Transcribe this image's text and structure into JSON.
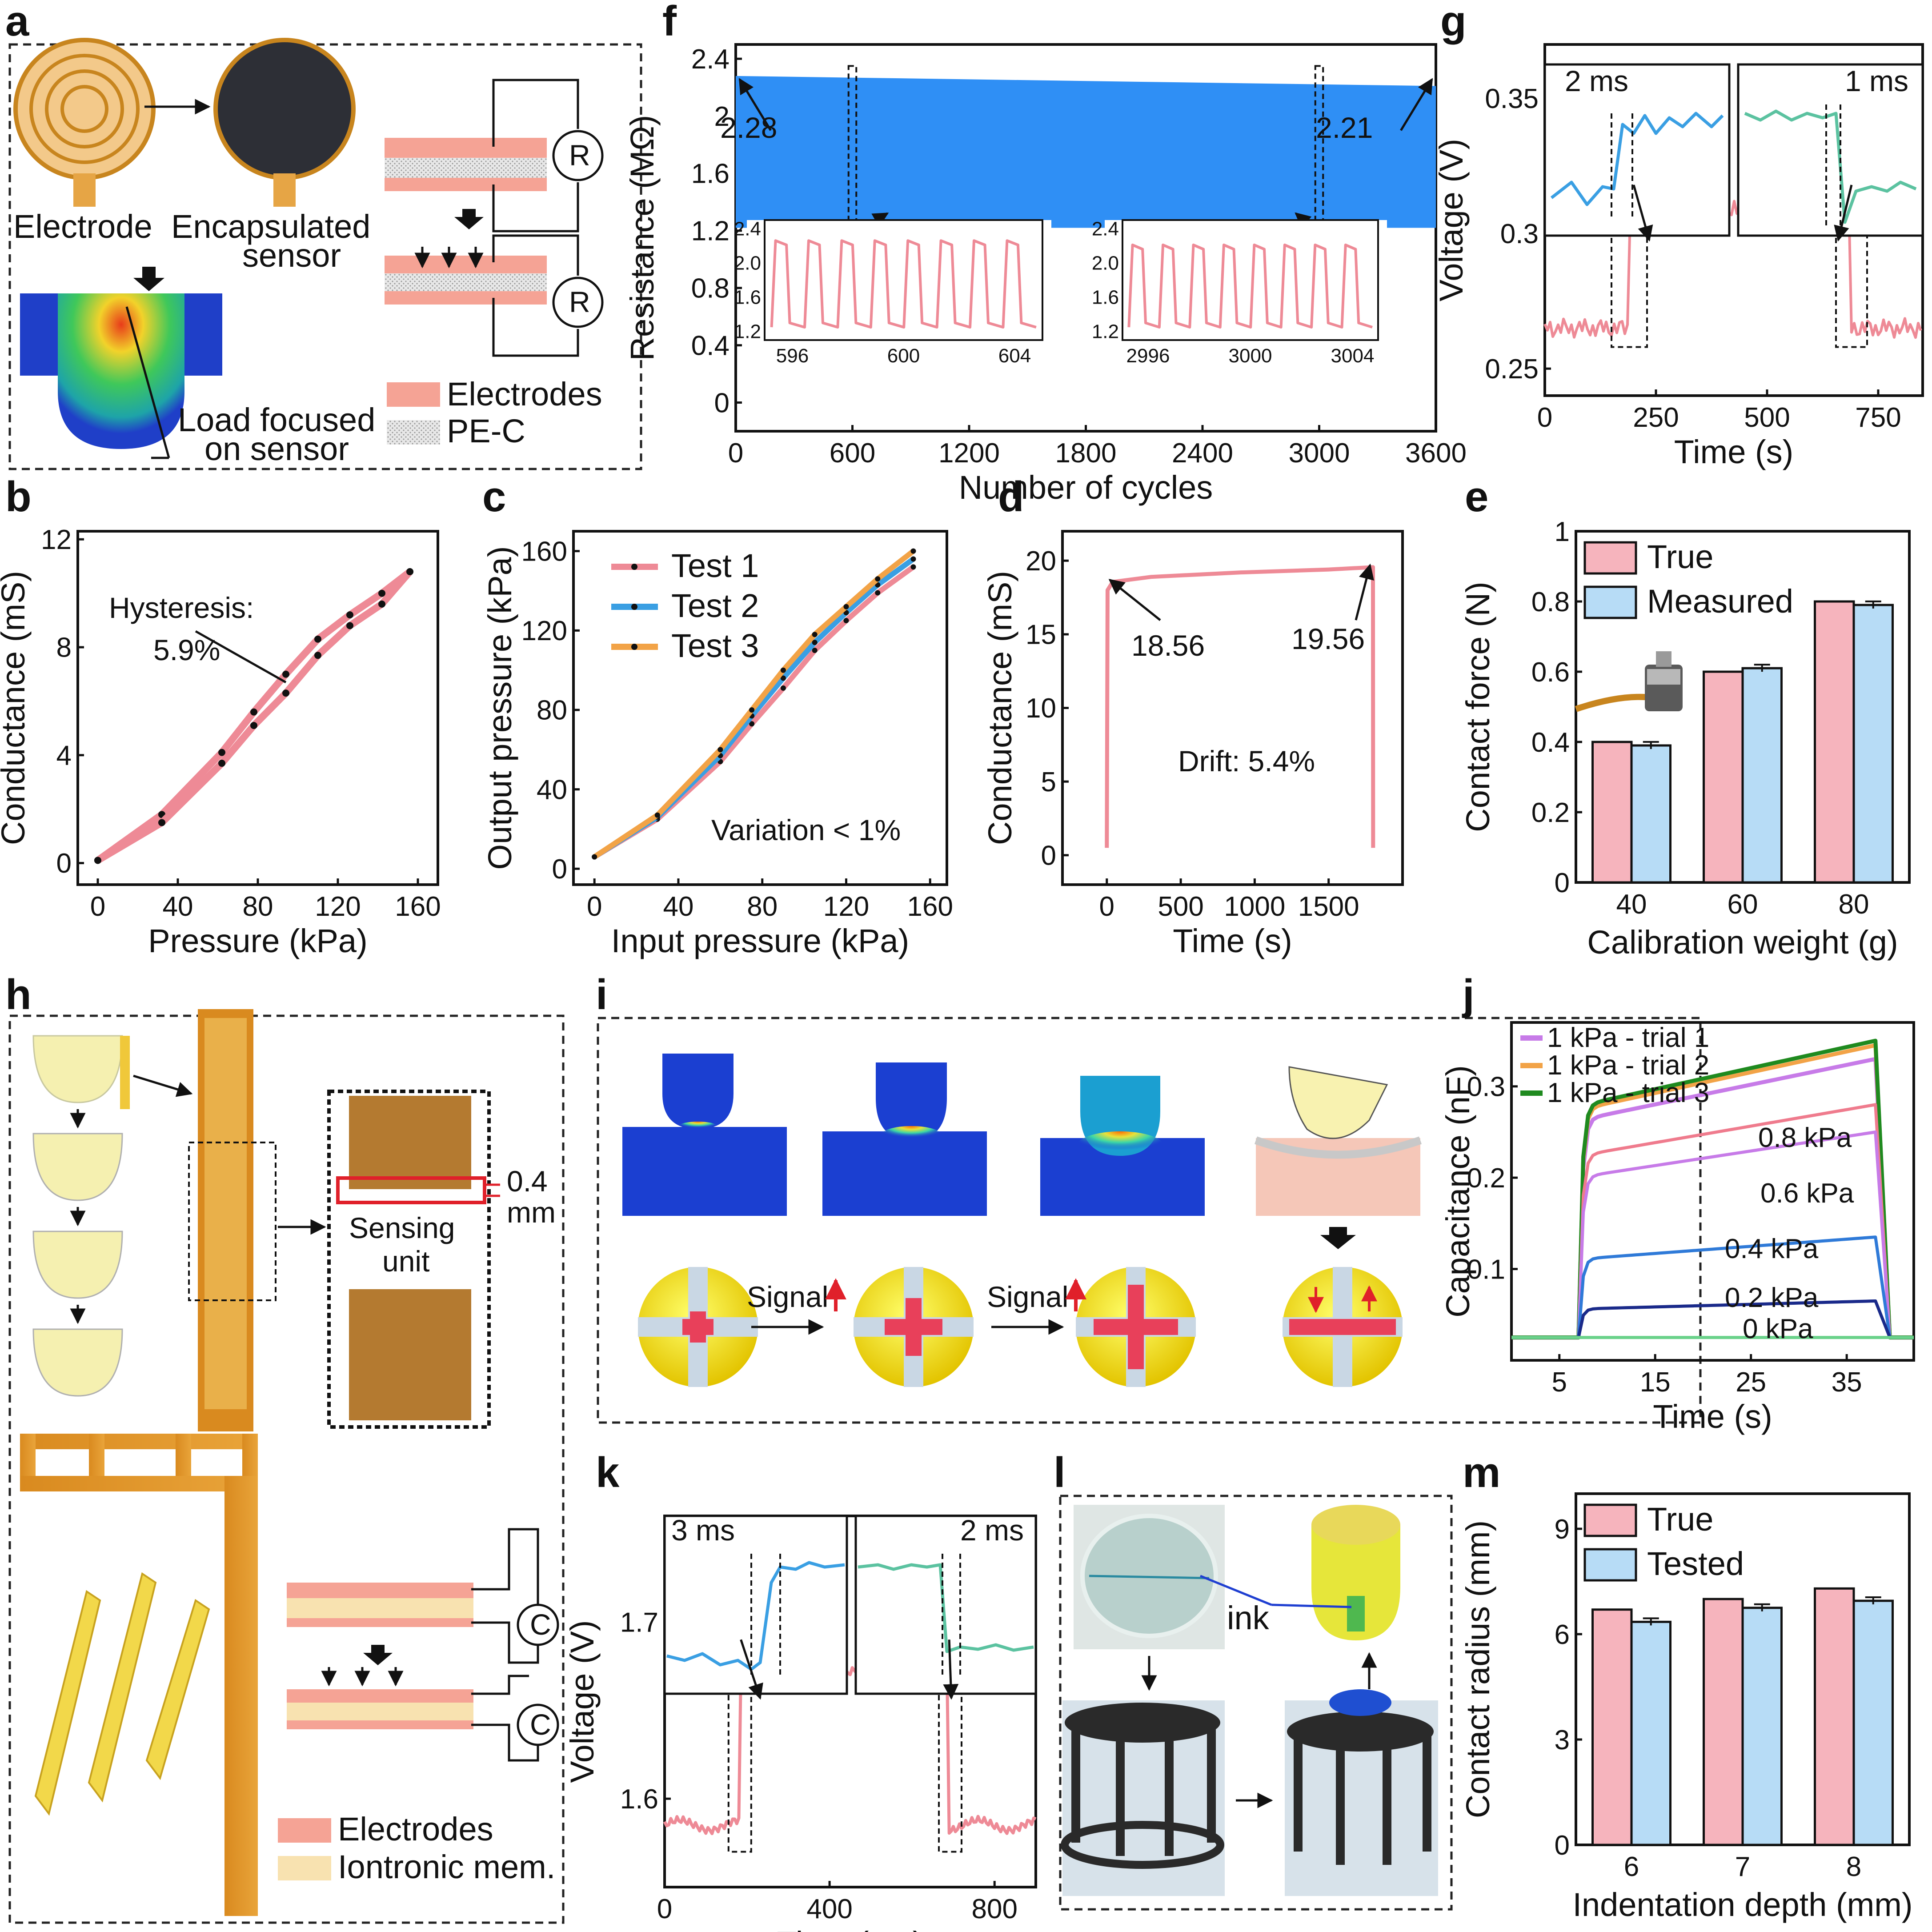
{
  "panels": {
    "a": {
      "letter": "a",
      "electrode": "Electrode",
      "encapsulated": [
        "Encapsulated",
        "sensor"
      ],
      "load": [
        "Load focused",
        "on sensor"
      ],
      "legend": [
        "Electrodes",
        "PE-C"
      ],
      "r_symbol": "R"
    },
    "f": {
      "letter": "f",
      "annot_left": "2.28",
      "annot_right": "2.21"
    },
    "g": {
      "letter": "g",
      "inset_left_label": "2 ms",
      "inset_right_label": "1 ms"
    },
    "b": {
      "letter": "b",
      "annot": [
        "Hysteresis:",
        "5.9%"
      ]
    },
    "c": {
      "letter": "c",
      "annot": "Variation < 1%"
    },
    "d": {
      "letter": "d",
      "annot_left": "18.56",
      "annot_right": "19.56",
      "drift": "Drift: 5.4%"
    },
    "e": {
      "letter": "e"
    },
    "h": {
      "letter": "h",
      "dim": [
        "0.4",
        "mm"
      ],
      "sensing": [
        "Sensing",
        "unit"
      ],
      "legend": [
        "Electrodes",
        "Iontronic mem."
      ],
      "c_symbol": "C"
    },
    "i": {
      "letter": "i",
      "signal": "Signal"
    },
    "j": {
      "letter": "j",
      "levels": [
        "0.8 kPa",
        "0.6 kPa",
        "0.4 kPa",
        "0.2 kPa",
        "0 kPa"
      ]
    },
    "k": {
      "letter": "k",
      "inset_left_label": "3 ms",
      "inset_right_label": "2 ms"
    },
    "l": {
      "letter": "l",
      "ink": "ink"
    },
    "m": {
      "letter": "m"
    }
  },
  "colors": {
    "pink": "#ee8a96",
    "blue_band": "#2f8ff5",
    "bar_true": "#f6b4bd",
    "bar_meas": "#b7dcf6",
    "orange": "#f2a347",
    "cyan": "#3a9fe3",
    "teal": "#5bc2a0",
    "violet": "#c77be8",
    "green": "#1f8a1f",
    "navy": "#1a2a8a",
    "mid_blue": "#2f7ad8",
    "light_green": "#6ad28a"
  },
  "chart_data": [
    {
      "id": "f",
      "type": "line",
      "xlabel": "Number of cycles",
      "ylabel": "Resistance (MΩ)",
      "xlim": [
        0,
        3600
      ],
      "ylim": [
        -0.2,
        2.5
      ],
      "xticks": [
        0,
        600,
        1200,
        1800,
        2400,
        3000,
        3600
      ],
      "yticks": [
        0,
        0.4,
        0.8,
        1.2,
        1.6,
        2.0,
        2.4
      ],
      "band": {
        "x": [
          0,
          3600
        ],
        "upper": [
          2.28,
          2.21
        ],
        "lower": [
          1.22,
          1.22
        ]
      },
      "insets": [
        {
          "xlim": [
            595,
            605
          ],
          "ylim": [
            1.1,
            2.5
          ],
          "xticks": [
            596,
            600,
            604
          ],
          "yticks": [
            1.2,
            1.6,
            2.0,
            2.4
          ],
          "cycles": 8,
          "low": 1.25,
          "high": 2.26
        },
        {
          "xlim": [
            2995,
            3005
          ],
          "ylim": [
            1.1,
            2.5
          ],
          "xticks": [
            2996,
            3000,
            3004
          ],
          "yticks": [
            1.2,
            1.6,
            2.0,
            2.4
          ],
          "cycles": 8,
          "low": 1.25,
          "high": 2.21
        }
      ]
    },
    {
      "id": "g",
      "type": "line",
      "xlabel": "Time (s)",
      "ylabel": "Voltage (V)",
      "xlim": [
        0,
        850
      ],
      "ylim": [
        0.24,
        0.37
      ],
      "xticks": [
        0,
        250,
        500,
        750
      ],
      "yticks": [
        0.25,
        0.3,
        0.35
      ],
      "x": [
        0,
        100,
        180,
        200,
        400,
        600,
        680,
        700,
        850
      ],
      "y": [
        0.265,
        0.266,
        0.265,
        0.307,
        0.308,
        0.309,
        0.308,
        0.265,
        0.266
      ]
    },
    {
      "id": "b",
      "type": "line",
      "xlabel": "Pressure (kPa)",
      "ylabel": "Conductance (mS)",
      "xlim": [
        -10,
        170
      ],
      "ylim": [
        -0.8,
        12.3
      ],
      "xticks": [
        0,
        40,
        80,
        120,
        160
      ],
      "yticks": [
        0,
        4,
        8,
        12
      ],
      "series": [
        {
          "x": [
            0,
            32,
            62,
            78,
            94,
            110,
            126,
            142,
            156
          ],
          "y": [
            0.1,
            1.8,
            4.1,
            5.6,
            7.0,
            8.3,
            9.2,
            10.0,
            10.8
          ]
        },
        {
          "x": [
            0,
            32,
            62,
            78,
            94,
            110,
            126,
            142,
            156
          ],
          "y": [
            0.1,
            1.5,
            3.7,
            5.1,
            6.3,
            7.7,
            8.8,
            9.6,
            10.8
          ]
        }
      ]
    },
    {
      "id": "c",
      "type": "line",
      "xlabel": "Input pressure (kPa)",
      "ylabel": "Output pressure (kPa)",
      "xlim": [
        -10,
        168
      ],
      "ylim": [
        -8,
        170
      ],
      "xticks": [
        0,
        40,
        80,
        120,
        160
      ],
      "yticks": [
        0,
        40,
        80,
        120,
        160
      ],
      "x": [
        0,
        30,
        60,
        75,
        90,
        105,
        120,
        135,
        152
      ],
      "series": [
        {
          "name": "Test 1",
          "y": [
            6,
            25,
            54,
            73,
            91,
            110,
            125,
            139,
            152
          ]
        },
        {
          "name": "Test 2",
          "y": [
            6,
            26,
            57,
            77,
            96,
            114,
            129,
            143,
            156
          ]
        },
        {
          "name": "Test 3",
          "y": [
            6,
            27,
            60,
            80,
            100,
            118,
            132,
            146,
            160
          ]
        }
      ]
    },
    {
      "id": "d",
      "type": "line",
      "xlabel": "Time (s)",
      "ylabel": "Conductance (mS)",
      "xlim": [
        -300,
        2000
      ],
      "ylim": [
        -2,
        22
      ],
      "xticks": [
        0,
        500,
        1000,
        1500
      ],
      "yticks": [
        0,
        5,
        10,
        15,
        20
      ],
      "x": [
        0,
        5,
        40,
        300,
        900,
        1500,
        1800,
        1801
      ],
      "y": [
        0.5,
        18.0,
        18.56,
        18.9,
        19.2,
        19.4,
        19.56,
        0.5
      ]
    },
    {
      "id": "e",
      "type": "bar",
      "xlabel": "Calibration weight (g)",
      "ylabel": "Contact force (N)",
      "categories": [
        "40",
        "60",
        "80"
      ],
      "ylim": [
        0,
        1.0
      ],
      "yticks": [
        0,
        0.2,
        0.4,
        0.6,
        0.8,
        1.0
      ],
      "series": [
        {
          "name": "True",
          "values": [
            0.4,
            0.6,
            0.8
          ]
        },
        {
          "name": "Measured",
          "values": [
            0.39,
            0.61,
            0.79
          ]
        }
      ]
    },
    {
      "id": "j",
      "type": "line",
      "xlabel": "Time (s)",
      "ylabel": "Capacitance (nF)",
      "xlim": [
        0,
        42
      ],
      "ylim": [
        0,
        0.37
      ],
      "xticks": [
        5,
        15,
        25,
        35
      ],
      "yticks": [
        0.1,
        0.2,
        0.3
      ],
      "series": [
        {
          "name": "1 kPa - trial 1",
          "plateau": 0.33
        },
        {
          "name": "1 kPa - trial 2",
          "plateau": 0.345
        },
        {
          "name": "1 kPa - trial 3",
          "plateau": 0.35
        },
        {
          "name": "0.8 kPa",
          "plateau": 0.28
        },
        {
          "name": "0.6 kPa",
          "plateau": 0.25
        },
        {
          "name": "0.4 kPa",
          "plateau": 0.135
        },
        {
          "name": "0.2 kPa",
          "plateau": 0.065
        },
        {
          "name": "0 kPa",
          "plateau": 0.025
        }
      ]
    },
    {
      "id": "k",
      "type": "line",
      "xlabel": "Time (ms)",
      "ylabel": "Voltage (V)",
      "xlim": [
        0,
        900
      ],
      "ylim": [
        1.55,
        1.76
      ],
      "xticks": [
        0,
        400,
        800
      ],
      "yticks": [
        1.6,
        1.7
      ],
      "x": [
        0,
        160,
        185,
        200,
        400,
        650,
        680,
        700,
        900
      ],
      "y": [
        1.585,
        1.585,
        1.585,
        1.67,
        1.67,
        1.672,
        1.67,
        1.585,
        1.585
      ]
    },
    {
      "id": "m",
      "type": "bar",
      "xlabel": "Indentation depth (mm)",
      "ylabel": "Contact radius (mm)",
      "categories": [
        "6",
        "7",
        "8"
      ],
      "ylim": [
        0,
        10
      ],
      "yticks": [
        0,
        3,
        6,
        9
      ],
      "series": [
        {
          "name": "True",
          "values": [
            6.7,
            7.0,
            7.3
          ]
        },
        {
          "name": "Tested",
          "values": [
            6.35,
            6.75,
            6.95
          ]
        }
      ]
    }
  ]
}
